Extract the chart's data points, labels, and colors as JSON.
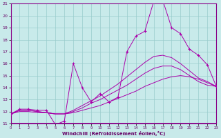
{
  "xlabel": "Windchill (Refroidissement éolien,°C)",
  "background_color": "#c8eaea",
  "line_color": "#aa00aa",
  "grid_color": "#99cccc",
  "xlim": [
    0,
    23
  ],
  "ylim": [
    11,
    21
  ],
  "yticks": [
    11,
    12,
    13,
    14,
    15,
    16,
    17,
    18,
    19,
    20,
    21
  ],
  "xticks": [
    0,
    1,
    2,
    3,
    4,
    5,
    6,
    7,
    8,
    9,
    10,
    11,
    12,
    13,
    14,
    15,
    16,
    17,
    18,
    19,
    20,
    21,
    22,
    23
  ],
  "line1_y": [
    11.8,
    12.2,
    12.2,
    12.1,
    12.1,
    10.9,
    11.2,
    16.0,
    14.0,
    12.8,
    13.5,
    12.8,
    13.2,
    17.0,
    18.3,
    18.7,
    21.2,
    21.3,
    19.0,
    18.5,
    17.2,
    16.7,
    15.9,
    14.1
  ],
  "line2_y": [
    11.8,
    12.1,
    12.1,
    12.0,
    11.9,
    11.8,
    11.8,
    12.1,
    12.5,
    12.9,
    13.3,
    13.8,
    14.3,
    14.9,
    15.5,
    16.1,
    16.6,
    16.7,
    16.5,
    16.0,
    15.4,
    14.8,
    14.5,
    14.1
  ],
  "line3_y": [
    11.8,
    12.1,
    12.1,
    12.0,
    11.9,
    11.8,
    11.8,
    12.0,
    12.3,
    12.7,
    13.0,
    13.4,
    13.8,
    14.2,
    14.7,
    15.2,
    15.6,
    15.8,
    15.8,
    15.5,
    15.0,
    14.5,
    14.2,
    14.1
  ],
  "line4_y": [
    11.8,
    12.0,
    12.0,
    11.9,
    11.9,
    11.8,
    11.8,
    11.9,
    12.1,
    12.3,
    12.5,
    12.8,
    13.1,
    13.4,
    13.7,
    14.1,
    14.4,
    14.7,
    14.9,
    15.0,
    14.9,
    14.7,
    14.4,
    14.1
  ]
}
